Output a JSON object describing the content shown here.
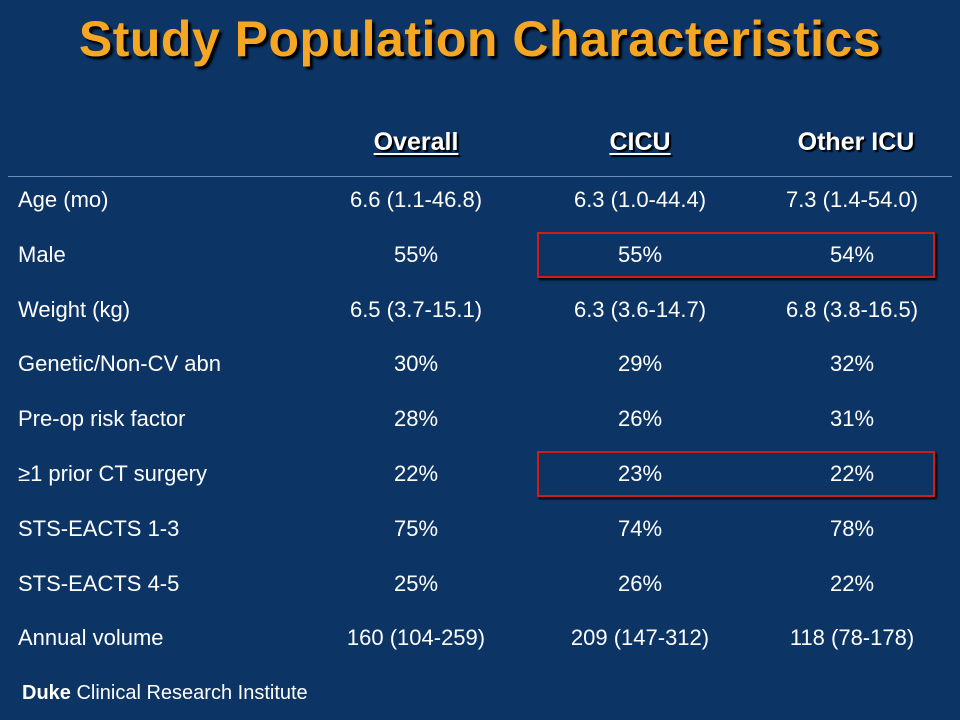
{
  "title": "Study Population Characteristics",
  "columns": {
    "overall": "Overall",
    "cicu": "CICU",
    "other": "Other ICU"
  },
  "rows": [
    {
      "label": "Age (mo)",
      "overall": "6.6 (1.1-46.8)",
      "cicu": "6.3 (1.0-44.4)",
      "other": "7.3 (1.4-54.0)"
    },
    {
      "label": "Male",
      "overall": "55%",
      "cicu": "55%",
      "other": "54%"
    },
    {
      "label": "Weight (kg)",
      "overall": "6.5 (3.7-15.1)",
      "cicu": "6.3 (3.6-14.7)",
      "other": "6.8 (3.8-16.5)"
    },
    {
      "label": "Genetic/Non-CV abn",
      "overall": "30%",
      "cicu": "29%",
      "other": "32%"
    },
    {
      "label": "Pre-op risk factor",
      "overall": "28%",
      "cicu": "26%",
      "other": "31%"
    },
    {
      "label": "≥1 prior CT surgery",
      "overall": "22%",
      "cicu": "23%",
      "other": "22%"
    },
    {
      "label": "STS-EACTS 1-3",
      "overall": "75%",
      "cicu": "74%",
      "other": "78%"
    },
    {
      "label": "STS-EACTS 4-5",
      "overall": "25%",
      "cicu": "26%",
      "other": "22%"
    },
    {
      "label": "Annual volume",
      "overall": "160 (104-259)",
      "cicu": "209 (147-312)",
      "other": "118 (78-178)"
    }
  ],
  "footer": {
    "brand": "Duke",
    "text": "Clinical Research Institute"
  },
  "colors": {
    "background": "#0c3465",
    "title": "#f5a623",
    "highlight_border": "#d01c1c",
    "text": "#ffffff"
  }
}
